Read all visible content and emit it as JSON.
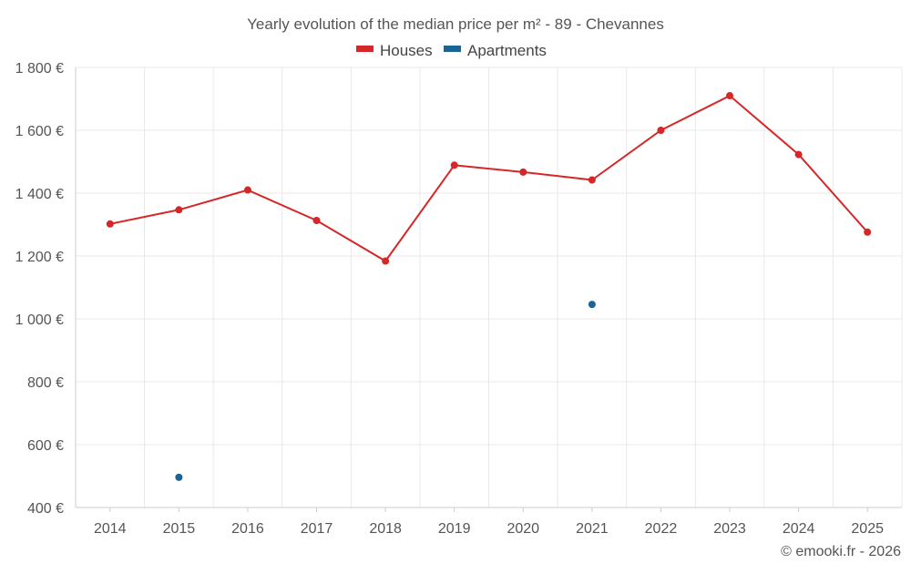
{
  "chart_data": {
    "type": "line",
    "title": "Yearly evolution of the median price per m² - 89 - Chevannes",
    "categories": [
      "2014",
      "2015",
      "2016",
      "2017",
      "2018",
      "2019",
      "2020",
      "2021",
      "2022",
      "2023",
      "2024",
      "2025"
    ],
    "series": [
      {
        "name": "Houses",
        "color": "#d62728",
        "values": [
          1302,
          1347,
          1410,
          1313,
          1184,
          1489,
          1467,
          1442,
          1600,
          1710,
          1523,
          1276
        ]
      },
      {
        "name": "Apartments",
        "color": "#1a6496",
        "values": [
          null,
          496,
          null,
          null,
          null,
          null,
          null,
          1046,
          null,
          null,
          null,
          null
        ]
      }
    ],
    "ylim": [
      400,
      1800
    ],
    "yticks": [
      400,
      600,
      800,
      1000,
      1200,
      1400,
      1600,
      1800
    ],
    "ytick_labels": [
      "400 €",
      "600 €",
      "800 €",
      "1 000 €",
      "1 200 €",
      "1 400 €",
      "1 600 €",
      "1 800 €"
    ],
    "xlabel": "",
    "ylabel": "",
    "grid": true,
    "legend_position": "top-center"
  },
  "footer": {
    "copyright": "© emooki.fr - 2026"
  }
}
